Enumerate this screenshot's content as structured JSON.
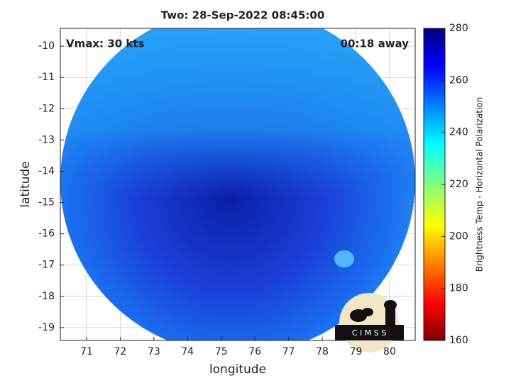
{
  "chart_data": {
    "type": "image",
    "title": "Two: 28-Sep-2022 08:45:00",
    "annotations": [
      "Vmax: 30 kts",
      "00:18 away"
    ],
    "x_label": "longitude",
    "y_label": "latitude",
    "xlim": [
      70.22,
      80.76
    ],
    "xticks": [
      71,
      72,
      73,
      74,
      75,
      76,
      77,
      78,
      79,
      80
    ],
    "ylim": [
      -19.41,
      -9.43
    ],
    "yticks": [
      -10,
      -11,
      -12,
      -13,
      -14,
      -15,
      -16,
      -17,
      -18,
      -19
    ],
    "grid": true,
    "colorbar": {
      "label": "Brightness Temp - Horizontal Polarization",
      "lim": [
        160,
        280
      ],
      "ticks": [
        160,
        180,
        200,
        220,
        240,
        260,
        280
      ]
    },
    "logo": "C I M S S"
  }
}
